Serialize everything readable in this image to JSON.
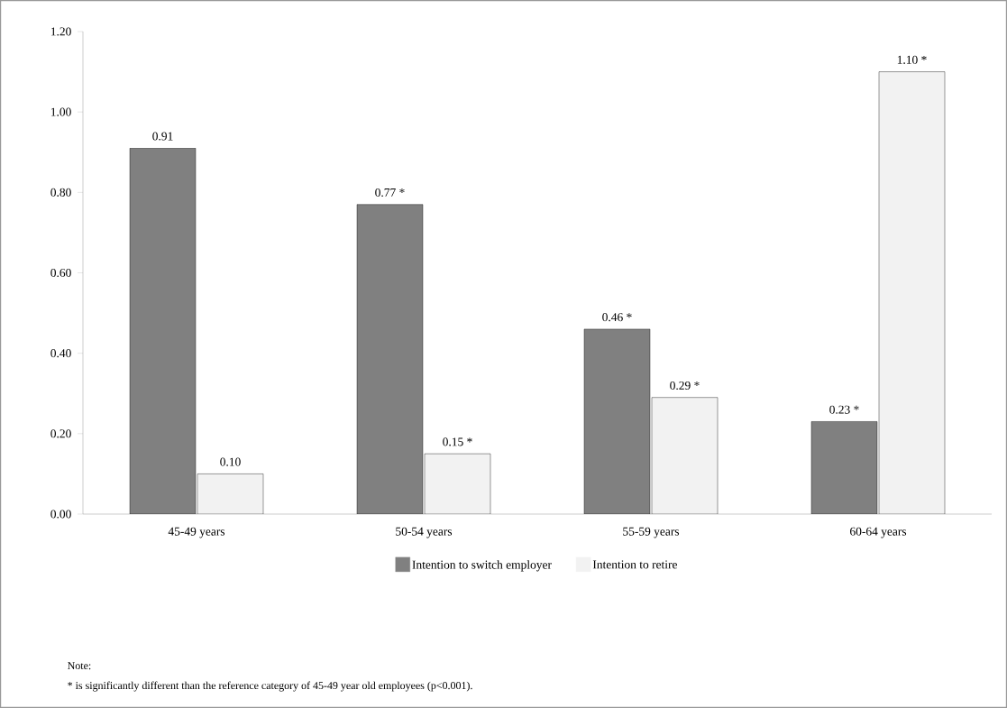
{
  "chart_data": {
    "type": "bar",
    "categories": [
      "45-49 years",
      "50-54 years",
      "55-59 years",
      "60-64 years"
    ],
    "series": [
      {
        "name": "Intention to switch employer",
        "color": "#808080",
        "values": [
          0.91,
          0.77,
          0.46,
          0.23
        ],
        "value_labels": [
          "0.91",
          "0.77 *",
          "0.46 *",
          "0.23 *"
        ]
      },
      {
        "name": "Intention to retire",
        "color": "#f2f2f2",
        "values": [
          0.1,
          0.15,
          0.29,
          1.1
        ],
        "value_labels": [
          "0.10",
          "0.15 *",
          "0.29 *",
          "1.10 *"
        ]
      }
    ],
    "ylim": [
      0,
      1.2
    ],
    "yticks": [
      {
        "value": 0,
        "label": "0.00"
      },
      {
        "value": 0.2,
        "label": "0.20"
      },
      {
        "value": 0.4,
        "label": "0.40"
      },
      {
        "value": 0.6,
        "label": "0.60"
      },
      {
        "value": 0.8,
        "label": "0.80"
      },
      {
        "value": 1.0,
        "label": "1.00"
      },
      {
        "value": 1.2,
        "label": "1.20"
      }
    ],
    "grid": false,
    "legend": "bottom",
    "annotations": [
      "Note:",
      "* is significantly different than the reference category of 45-49 year old employees (p<0.001)."
    ]
  }
}
